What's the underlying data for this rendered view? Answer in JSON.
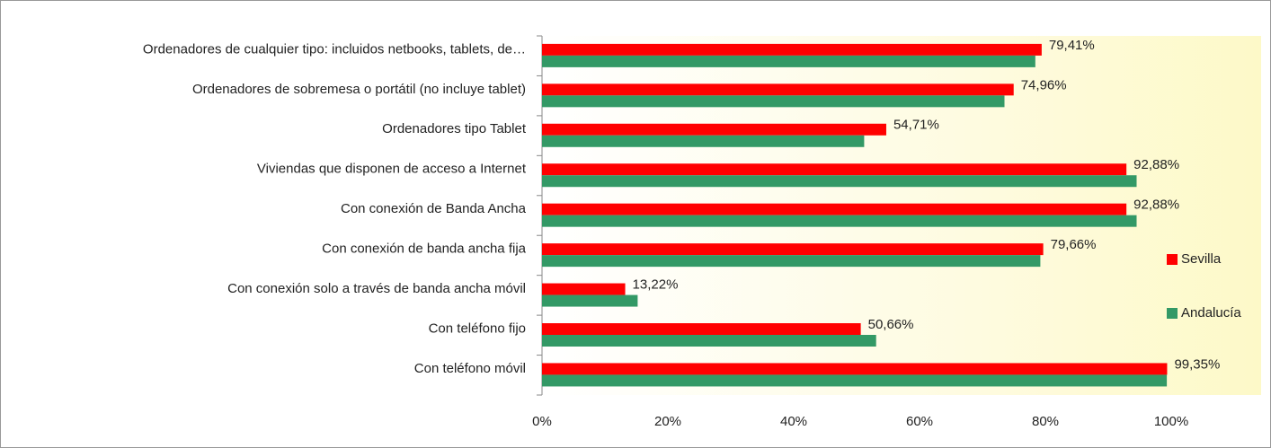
{
  "chart_data": {
    "type": "bar",
    "orientation": "horizontal",
    "categories": [
      "Ordenadores de cualquier tipo: incluidos netbooks, tablets, de…",
      "Ordenadores de sobremesa o portátil (no incluye tablet)",
      "Ordenadores tipo Tablet",
      "Viviendas que disponen de acceso a Internet",
      "Con conexión de Banda Ancha",
      "Con conexión de banda ancha fija",
      "Con conexión solo a través de banda ancha móvil",
      "Con teléfono fijo",
      "Con teléfono móvil"
    ],
    "series": [
      {
        "name": "Sevilla",
        "color": "#ff0000",
        "values": [
          79.41,
          74.96,
          54.71,
          92.88,
          92.88,
          79.66,
          13.22,
          50.66,
          99.35
        ],
        "value_labels": [
          "79,41%",
          "74,96%",
          "54,71%",
          "92,88%",
          "92,88%",
          "79,66%",
          "13,22%",
          "50,66%",
          "99,35%"
        ]
      },
      {
        "name": "Andalucía",
        "color": "#339966",
        "values": [
          78.4,
          73.5,
          51.2,
          94.5,
          94.5,
          79.2,
          15.2,
          53.1,
          99.3
        ]
      }
    ],
    "xlim": [
      0,
      100
    ],
    "xticks": [
      {
        "value": 0,
        "label": "0%"
      },
      {
        "value": 20,
        "label": "20%"
      },
      {
        "value": 40,
        "label": "40%"
      },
      {
        "value": 60,
        "label": "60%"
      },
      {
        "value": 80,
        "label": "80%"
      },
      {
        "value": 100,
        "label": "100%"
      }
    ],
    "legend": "right",
    "grid": false
  }
}
